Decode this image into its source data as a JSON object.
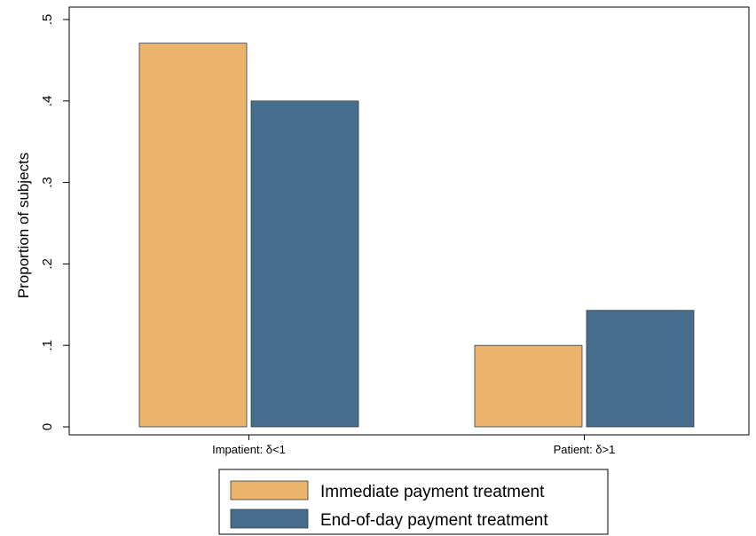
{
  "chart_data": {
    "type": "bar",
    "title": "",
    "xlabel": "",
    "ylabel": "Proportion of subjects",
    "ylim": [
      0,
      0.5
    ],
    "yticks": [
      {
        "value": 0,
        "label": "0"
      },
      {
        "value": 0.1,
        "label": ".1"
      },
      {
        "value": 0.2,
        "label": ".2"
      },
      {
        "value": 0.3,
        "label": ".3"
      },
      {
        "value": 0.4,
        "label": ".4"
      },
      {
        "value": 0.5,
        "label": ".5"
      }
    ],
    "categories": [
      "Impatient:  δ<1",
      "Patient:  δ>1"
    ],
    "series": [
      {
        "name": "Immediate payment treatment",
        "values": [
          0.471,
          0.1
        ],
        "color": "#ecb36d"
      },
      {
        "name": "End-of-day payment treatment",
        "values": [
          0.4,
          0.143
        ],
        "color": "#466d8c"
      }
    ],
    "grid": false,
    "legend_position": "bottom"
  }
}
